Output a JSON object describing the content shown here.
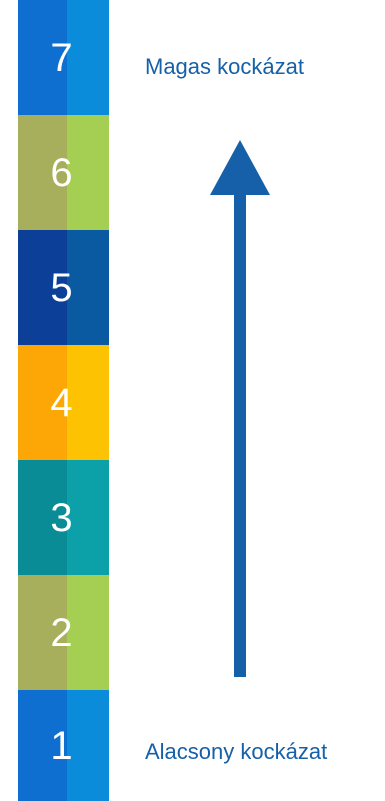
{
  "scale": {
    "levels": [
      {
        "number": "7",
        "color_left": "#0f6fd0",
        "color_right": "#0a8cdb"
      },
      {
        "number": "6",
        "color_left": "#a7ae5c",
        "color_right": "#a5cf52"
      },
      {
        "number": "5",
        "color_left": "#0b3f98",
        "color_right": "#0a5aa2"
      },
      {
        "number": "4",
        "color_left": "#fca705",
        "color_right": "#fdc202"
      },
      {
        "number": "3",
        "color_left": "#0a8c97",
        "color_right": "#0ca0a8"
      },
      {
        "number": "2",
        "color_left": "#a7ae5c",
        "color_right": "#a5cf52"
      },
      {
        "number": "1",
        "color_left": "#0f6fd0",
        "color_right": "#0a8cdb"
      }
    ]
  },
  "labels": {
    "high": "Magas kockázat",
    "low": "Alacsony kockázat",
    "color": "#1560a8"
  },
  "arrow": {
    "color": "#1560a8",
    "direction": "up"
  }
}
